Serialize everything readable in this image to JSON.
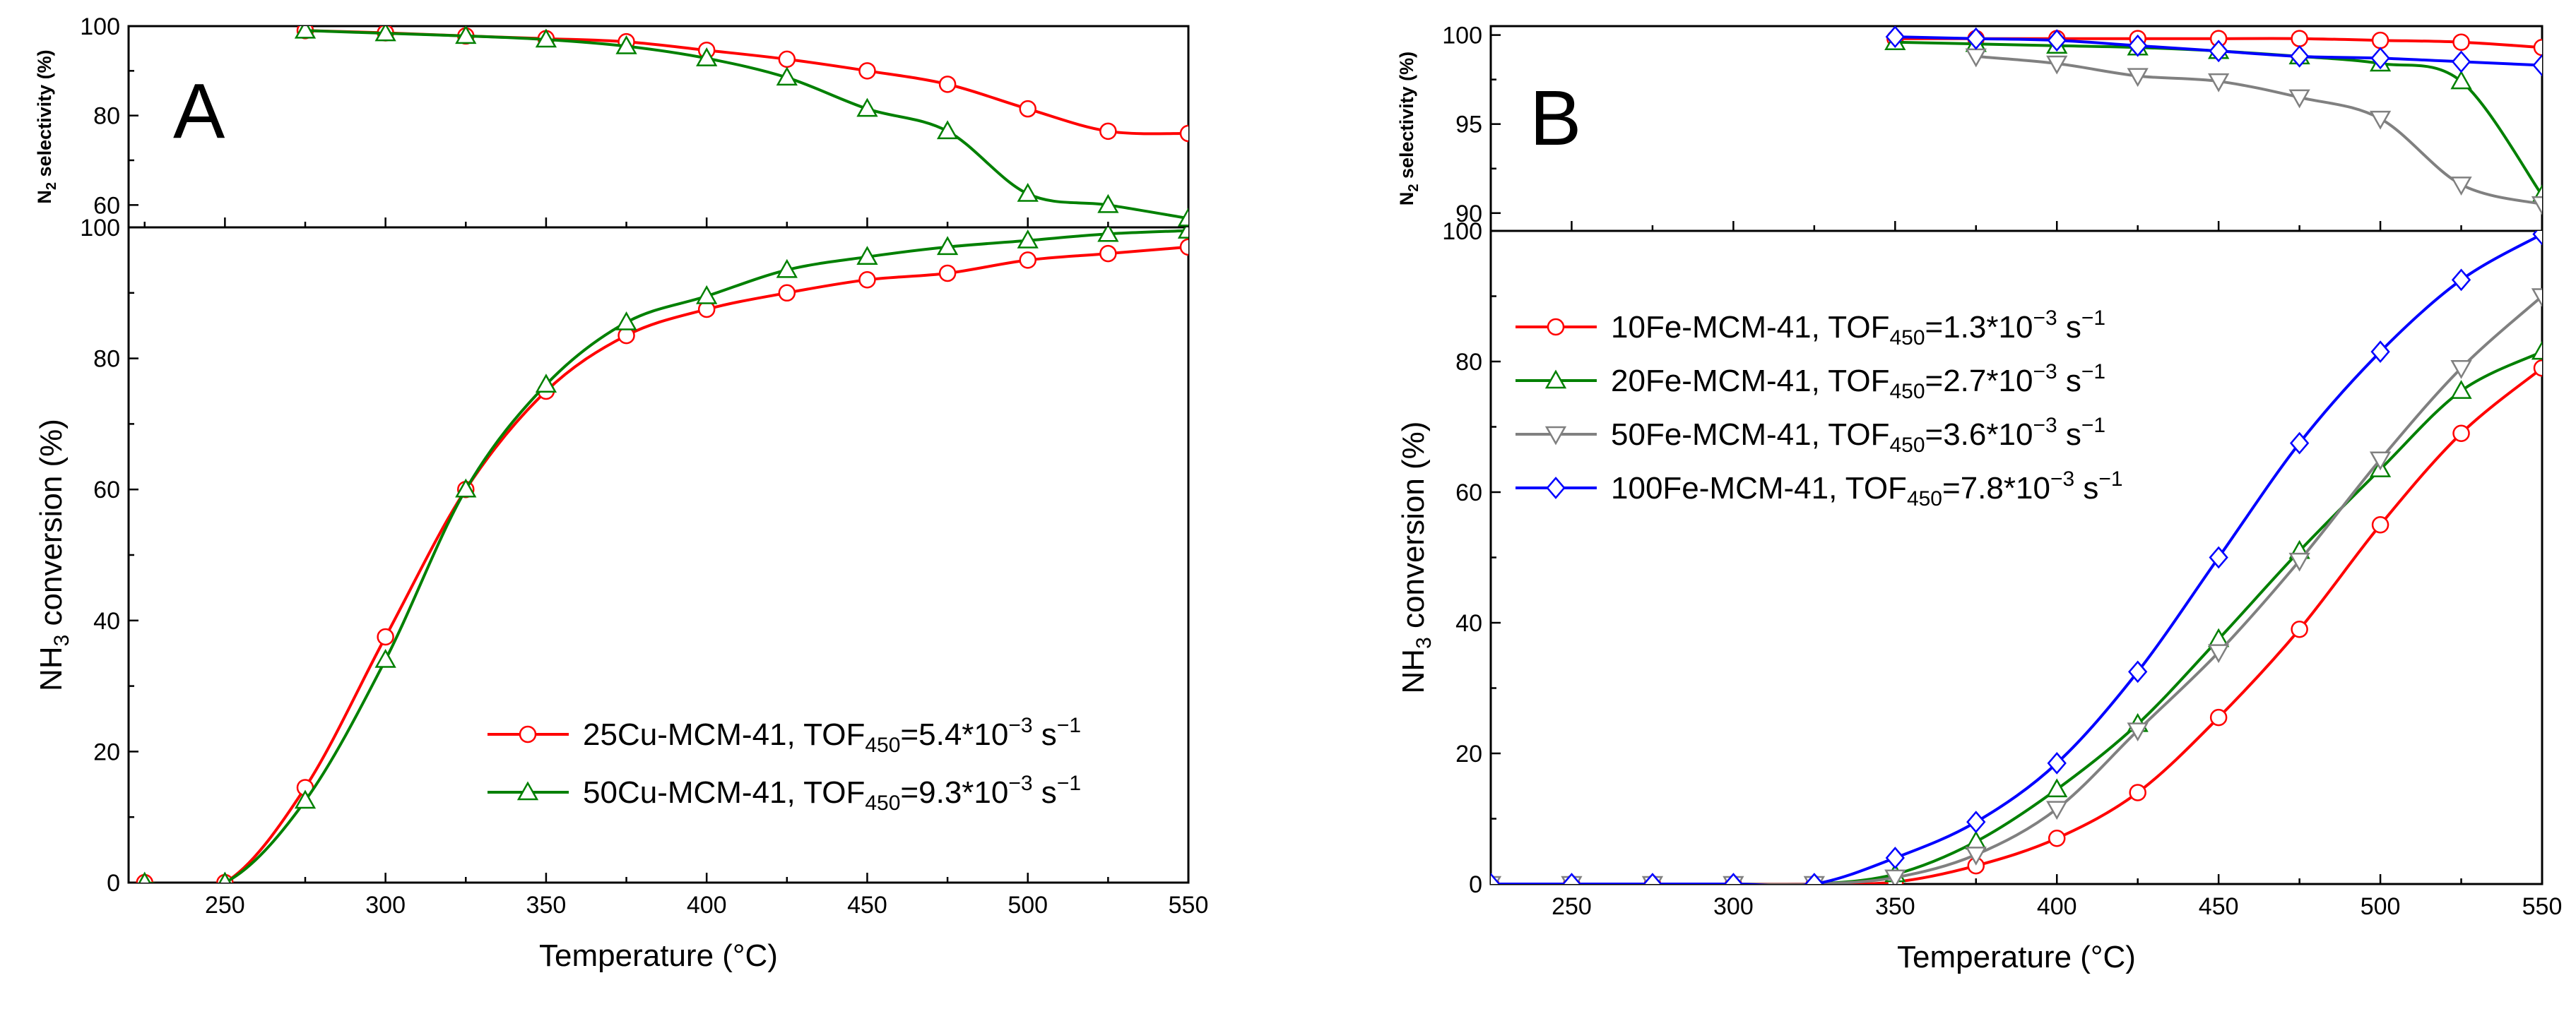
{
  "figure": {
    "panels": [
      "A",
      "B"
    ]
  },
  "chart_data": [
    {
      "type": "line",
      "panel": "A",
      "subplot": "top",
      "ylabel": "N2 selectivity (%)",
      "xlabel": "",
      "xlim": [
        220,
        550
      ],
      "ylim": [
        55,
        100
      ],
      "yticks": [
        60,
        80,
        100
      ],
      "series": [
        {
          "key": "25cu",
          "name": "25Cu-MCM-41",
          "color": "#ff0000",
          "marker": "circle",
          "x": [
            275,
            300,
            325,
            350,
            375,
            400,
            425,
            450,
            475,
            500,
            525,
            550
          ],
          "y": [
            99,
            98.5,
            97.8,
            97.2,
            96.5,
            94.6,
            92.6,
            90,
            87,
            81.5,
            76.5,
            76
          ]
        },
        {
          "key": "50cu",
          "name": "50Cu-MCM-41",
          "color": "#008000",
          "marker": "triangle-up",
          "x": [
            275,
            300,
            325,
            350,
            375,
            400,
            425,
            450,
            475,
            500,
            525,
            550
          ],
          "y": [
            99,
            98.4,
            97.8,
            97,
            95.5,
            92.8,
            88.5,
            81.5,
            76.5,
            62.5,
            60,
            57
          ]
        }
      ]
    },
    {
      "type": "line",
      "panel": "A",
      "subplot": "bottom",
      "xlabel": "Temperature (°C)",
      "ylabel": "NH3 conversion (%)",
      "xlim": [
        220,
        550
      ],
      "ylim": [
        0,
        100
      ],
      "xticks": [
        250,
        300,
        350,
        400,
        450,
        500,
        550
      ],
      "yticks": [
        0,
        20,
        40,
        60,
        80,
        100
      ],
      "legend": {
        "position": "bottom-right",
        "entries": [
          {
            "key": "25cu",
            "label": "25Cu-MCM-41, TOF",
            "sub": "450",
            "value": "=5.4*10",
            "exp": "−3",
            "unit": " s",
            "unit_exp": "−1"
          },
          {
            "key": "50cu",
            "label": "50Cu-MCM-41, TOF",
            "sub": "450",
            "value": "=9.3*10",
            "exp": "−3",
            "unit": " s",
            "unit_exp": "−1"
          }
        ]
      },
      "series": [
        {
          "key": "25cu",
          "name": "25Cu-MCM-41",
          "color": "#ff0000",
          "marker": "circle",
          "x": [
            225,
            250,
            275,
            300,
            325,
            350,
            375,
            400,
            425,
            450,
            475,
            500,
            525,
            550
          ],
          "y": [
            0,
            0,
            14.5,
            37.5,
            60,
            75,
            83.5,
            87.5,
            90,
            92,
            93,
            95,
            96,
            97
          ]
        },
        {
          "key": "50cu",
          "name": "50Cu-MCM-41",
          "color": "#008000",
          "marker": "triangle-up",
          "x": [
            225,
            250,
            275,
            300,
            325,
            350,
            375,
            400,
            425,
            450,
            475,
            500,
            525,
            550
          ],
          "y": [
            0,
            0,
            12.5,
            34,
            60,
            76,
            85.5,
            89.5,
            93.5,
            95.5,
            97,
            98,
            99,
            99.5
          ]
        }
      ]
    },
    {
      "type": "line",
      "panel": "B",
      "subplot": "top",
      "ylabel": "N2 selectivity (%)",
      "xlabel": "",
      "xlim": [
        225,
        550
      ],
      "ylim": [
        89,
        100.5
      ],
      "yticks": [
        90,
        95,
        100
      ],
      "series": [
        {
          "key": "10fe",
          "name": "10Fe-MCM-41",
          "color": "#ff0000",
          "marker": "circle",
          "x": [
            350,
            375,
            400,
            425,
            450,
            475,
            500,
            525,
            550
          ],
          "y": [
            99.8,
            99.8,
            99.8,
            99.8,
            99.8,
            99.8,
            99.7,
            99.6,
            99.3
          ]
        },
        {
          "key": "20fe",
          "name": "20Fe-MCM-41",
          "color": "#008000",
          "marker": "triangle-up",
          "x": [
            350,
            375,
            400,
            425,
            450,
            475,
            500,
            525,
            550
          ],
          "y": [
            99.6,
            99.5,
            99.4,
            99.3,
            99.1,
            98.8,
            98.4,
            97.4,
            91
          ]
        },
        {
          "key": "50fe",
          "name": "50Fe-MCM-41",
          "color": "#808080",
          "marker": "triangle-down",
          "x": [
            375,
            400,
            425,
            450,
            475,
            500,
            525,
            550
          ],
          "y": [
            98.8,
            98.4,
            97.7,
            97.4,
            96.5,
            95.3,
            91.6,
            90.5
          ]
        },
        {
          "key": "100fe",
          "name": "100Fe-MCM-41",
          "color": "#0000ff",
          "marker": "diamond",
          "x": [
            350,
            375,
            400,
            425,
            450,
            475,
            500,
            525,
            550
          ],
          "y": [
            99.9,
            99.8,
            99.7,
            99.4,
            99.1,
            98.8,
            98.7,
            98.5,
            98.3
          ]
        }
      ]
    },
    {
      "type": "line",
      "panel": "B",
      "subplot": "bottom",
      "xlabel": "Temperature (°C)",
      "ylabel": "NH3 conversion (%)",
      "xlim": [
        225,
        550
      ],
      "ylim": [
        0,
        100
      ],
      "xticks": [
        250,
        300,
        350,
        400,
        450,
        500,
        550
      ],
      "yticks": [
        0,
        20,
        40,
        60,
        80,
        100
      ],
      "legend": {
        "position": "top-left",
        "entries": [
          {
            "key": "10fe",
            "label": "10Fe-MCM-41, TOF",
            "sub": "450",
            "value": "=1.3*10",
            "exp": "−3",
            "unit": " s",
            "unit_exp": "−1"
          },
          {
            "key": "20fe",
            "label": "20Fe-MCM-41, TOF",
            "sub": "450",
            "value": "=2.7*10",
            "exp": "−3",
            "unit": " s",
            "unit_exp": "−1"
          },
          {
            "key": "50fe",
            "label": "50Fe-MCM-41, TOF",
            "sub": "450",
            "value": "=3.6*10",
            "exp": "−3",
            "unit": " s",
            "unit_exp": "−1"
          },
          {
            "key": "100fe",
            "label": "100Fe-MCM-41, TOF",
            "sub": "450",
            "value": "=7.8*10",
            "exp": "−3",
            "unit": " s",
            "unit_exp": "−1"
          }
        ]
      },
      "series": [
        {
          "key": "10fe",
          "name": "10Fe-MCM-41",
          "color": "#ff0000",
          "marker": "circle",
          "x": [
            225,
            250,
            275,
            300,
            325,
            350,
            375,
            400,
            425,
            450,
            475,
            500,
            525,
            550
          ],
          "y": [
            0,
            0,
            0,
            0,
            0,
            0.3,
            2.8,
            7,
            14,
            25.5,
            39,
            55,
            69,
            79
          ]
        },
        {
          "key": "20fe",
          "name": "20Fe-MCM-41",
          "color": "#008000",
          "marker": "triangle-up",
          "x": [
            225,
            250,
            275,
            300,
            325,
            350,
            375,
            400,
            425,
            450,
            475,
            500,
            525,
            550
          ],
          "y": [
            0,
            0,
            0,
            0,
            0,
            1.5,
            6.5,
            14.5,
            24.5,
            37.5,
            51,
            63.5,
            75.5,
            81.5
          ]
        },
        {
          "key": "50fe",
          "name": "50Fe-MCM-41",
          "color": "#808080",
          "marker": "triangle-down",
          "x": [
            225,
            250,
            275,
            300,
            325,
            350,
            375,
            400,
            425,
            450,
            475,
            500,
            525,
            550
          ],
          "y": [
            0,
            0,
            0,
            0,
            0,
            1,
            4.5,
            11.5,
            23.5,
            35.5,
            49.5,
            65,
            79,
            90
          ]
        },
        {
          "key": "100fe",
          "name": "100Fe-MCM-41",
          "color": "#0000ff",
          "marker": "diamond",
          "x": [
            225,
            250,
            275,
            300,
            325,
            350,
            375,
            400,
            425,
            450,
            475,
            500,
            525,
            550
          ],
          "y": [
            0,
            0,
            0,
            0,
            0,
            4,
            9.5,
            18.5,
            32.5,
            50,
            67.5,
            81.5,
            92.5,
            99.5
          ]
        }
      ]
    }
  ]
}
